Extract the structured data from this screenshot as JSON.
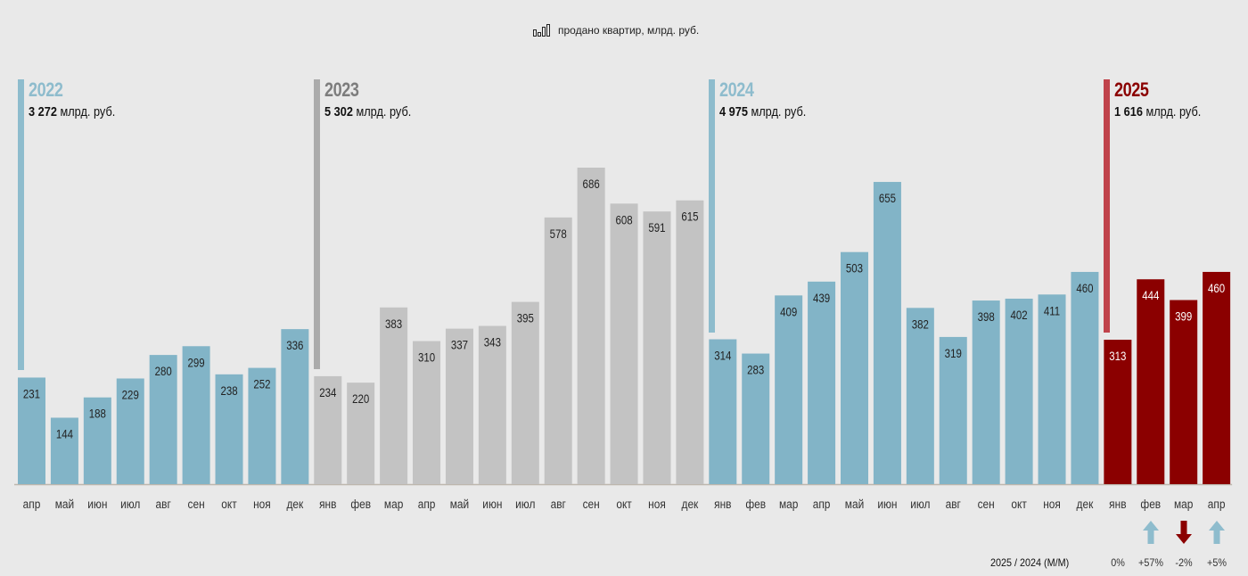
{
  "legend": {
    "icon": "bar-chart-icon",
    "label": "продано квартир, млрд. руб."
  },
  "colors": {
    "y2022": "#82b4c7",
    "y2023": "#c3c3c3",
    "y2024": "#82b4c7",
    "y2025": "#8b0000",
    "marker2022": "#8ebccd",
    "marker2023": "#ababab",
    "marker2024": "#8ebccd",
    "marker2025": "#c0434b",
    "title2022": "#8ebccd",
    "title2023": "#7d7d7d",
    "title2024": "#8ebccd",
    "title2025": "#8b0000",
    "arrow_up": "#8ebccd",
    "arrow_down": "#8b0000"
  },
  "years": [
    {
      "year": "2022",
      "total_num": "3 272",
      "total_unit": "млрд. руб.",
      "start_index": 0
    },
    {
      "year": "2023",
      "total_num": "5 302",
      "total_unit": "млрд. руб.",
      "start_index": 9
    },
    {
      "year": "2024",
      "total_num": "4 975",
      "total_unit": "млрд. руб.",
      "start_index": 21
    },
    {
      "year": "2025",
      "total_num": "1 616",
      "total_unit": "млрд. руб.",
      "start_index": 33
    }
  ],
  "comparison": {
    "label": "2025 / 2024 (М/М)",
    "items": [
      {
        "month": "янв",
        "value": "0%",
        "arrow": "none"
      },
      {
        "month": "фев",
        "value": "+57%",
        "arrow": "up"
      },
      {
        "month": "мар",
        "value": "-2%",
        "arrow": "down"
      },
      {
        "month": "апр",
        "value": "+5%",
        "arrow": "up"
      }
    ]
  },
  "chart_data": {
    "type": "bar",
    "title": "",
    "xlabel": "",
    "ylabel": "",
    "legend": [
      "продано квартир, млрд. руб."
    ],
    "legend_position": "top-center",
    "grid": false,
    "ylim": [
      0,
      700
    ],
    "categories": [
      "апр",
      "май",
      "июн",
      "июл",
      "авг",
      "сен",
      "окт",
      "ноя",
      "дек",
      "янв",
      "фев",
      "мар",
      "апр",
      "май",
      "июн",
      "июл",
      "авг",
      "сен",
      "окт",
      "ноя",
      "дек",
      "янв",
      "фев",
      "мар",
      "апр",
      "май",
      "июн",
      "июл",
      "авг",
      "сен",
      "окт",
      "ноя",
      "дек",
      "янв",
      "фев",
      "мар",
      "апр"
    ],
    "years": [
      "2022",
      "2022",
      "2022",
      "2022",
      "2022",
      "2022",
      "2022",
      "2022",
      "2022",
      "2023",
      "2023",
      "2023",
      "2023",
      "2023",
      "2023",
      "2023",
      "2023",
      "2023",
      "2023",
      "2023",
      "2023",
      "2024",
      "2024",
      "2024",
      "2024",
      "2024",
      "2024",
      "2024",
      "2024",
      "2024",
      "2024",
      "2024",
      "2024",
      "2025",
      "2025",
      "2025",
      "2025"
    ],
    "values": [
      231,
      144,
      188,
      229,
      280,
      299,
      238,
      252,
      336,
      234,
      220,
      383,
      310,
      337,
      343,
      395,
      578,
      686,
      608,
      591,
      615,
      314,
      283,
      409,
      439,
      503,
      655,
      382,
      319,
      398,
      402,
      411,
      460,
      313,
      444,
      399,
      460
    ]
  }
}
